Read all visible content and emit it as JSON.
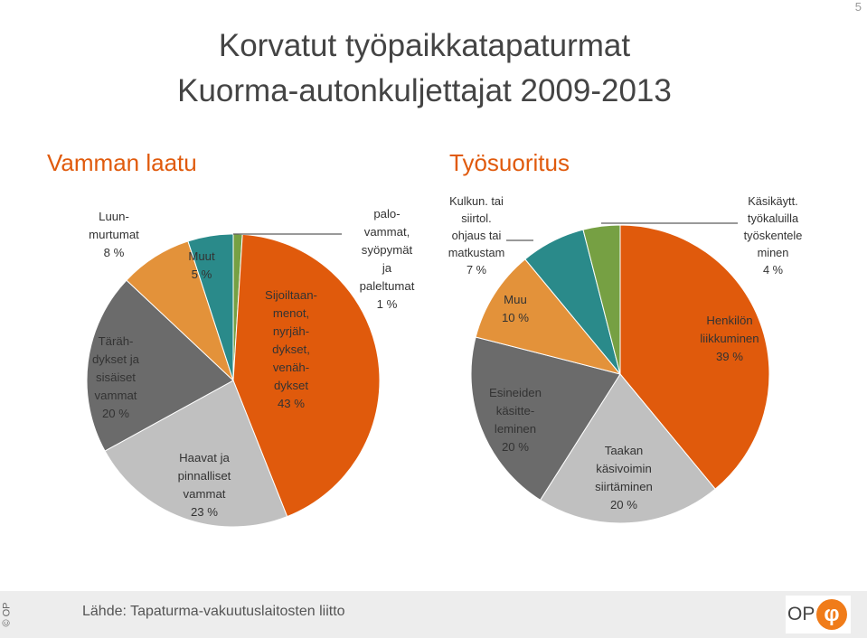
{
  "page_number": "5",
  "title_line_1": "Korvatut työpaikkatapaturmat",
  "title_line_2": "Kuorma-autonkuljettajat 2009-2013",
  "colors": {
    "orange_dark": "#e05a0c",
    "orange_light": "#e3923a",
    "grey_dark": "#6b6b6b",
    "grey_light": "#c0c0c0",
    "teal": "#2a8a8a",
    "green": "#76a043"
  },
  "chart_data": [
    {
      "type": "pie",
      "title": "Vamman laatu",
      "slices": [
        {
          "label": "palo-\nvammat,\nsyöpymät\nja\npaleltumat\n1 %",
          "value": 1,
          "color": "#76a043"
        },
        {
          "label": "Sijoiltaan-\nmenot,\nnyrjäh-\ndykset,\nvenäh-\ndykset\n43 %",
          "value": 43,
          "color": "#e05a0c"
        },
        {
          "label": "Haavat ja\npinnalliset\nvammat\n23 %",
          "value": 23,
          "color": "#c0c0c0"
        },
        {
          "label": "Täräh-\ndykset ja\nsisäiset\nvammat\n20 %",
          "value": 20,
          "color": "#6b6b6b"
        },
        {
          "label": "Luun-\nmurtumat\n8 %",
          "value": 8,
          "color": "#e3923a"
        },
        {
          "label": "Muut\n5 %",
          "value": 5,
          "color": "#2a8a8a"
        }
      ]
    },
    {
      "type": "pie",
      "title": "Työsuoritus",
      "slices": [
        {
          "label": "Henkilön\nliikkuminen\n39 %",
          "value": 39,
          "color": "#e05a0c"
        },
        {
          "label": "Taakan\nkäsivoimin\nsiirtäminen\n20 %",
          "value": 20,
          "color": "#c0c0c0"
        },
        {
          "label": "Esineiden\nkäsitte-\nleminen\n20 %",
          "value": 20,
          "color": "#6b6b6b"
        },
        {
          "label": "Muu\n10 %",
          "value": 10,
          "color": "#e3923a"
        },
        {
          "label": "Kulkun. tai\nsiirtol.\nohjaus tai\nmatkustam\n7 %",
          "value": 7,
          "color": "#2a8a8a"
        },
        {
          "label": "Käsikäytt.\ntyökaluilla\ntyöskentele\nminen\n4 %",
          "value": 4,
          "color": "#76a043"
        }
      ]
    }
  ],
  "footer": {
    "source": "Lähde: Tapaturma-vakuutuslaitosten liitto",
    "copyright": "© OP",
    "logo_text": "OP"
  }
}
